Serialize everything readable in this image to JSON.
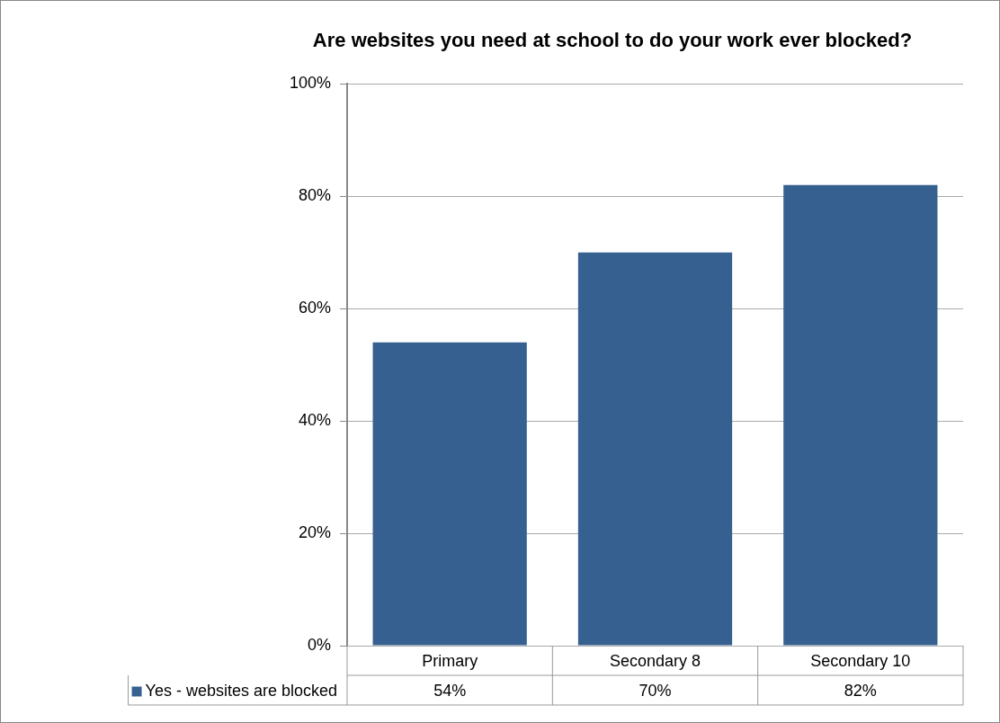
{
  "chart_data": {
    "type": "bar",
    "title": "Are websites you need at school to do your work ever blocked?",
    "categories": [
      "Primary",
      "Secondary 8",
      "Secondary 10"
    ],
    "series": [
      {
        "name": "Yes - websites are blocked",
        "color": "#36608f",
        "values": [
          54,
          70,
          82
        ],
        "value_labels": [
          "54%",
          "70%",
          "82%"
        ]
      }
    ],
    "ylim": [
      0,
      100
    ],
    "yticks": [
      {
        "value": 0,
        "label": "0%"
      },
      {
        "value": 20,
        "label": "20%"
      },
      {
        "value": 40,
        "label": "40%"
      },
      {
        "value": 60,
        "label": "60%"
      },
      {
        "value": 80,
        "label": "80%"
      },
      {
        "value": 100,
        "label": "100%"
      }
    ],
    "grid": "y",
    "legend": "bottom",
    "data_labels": true
  }
}
